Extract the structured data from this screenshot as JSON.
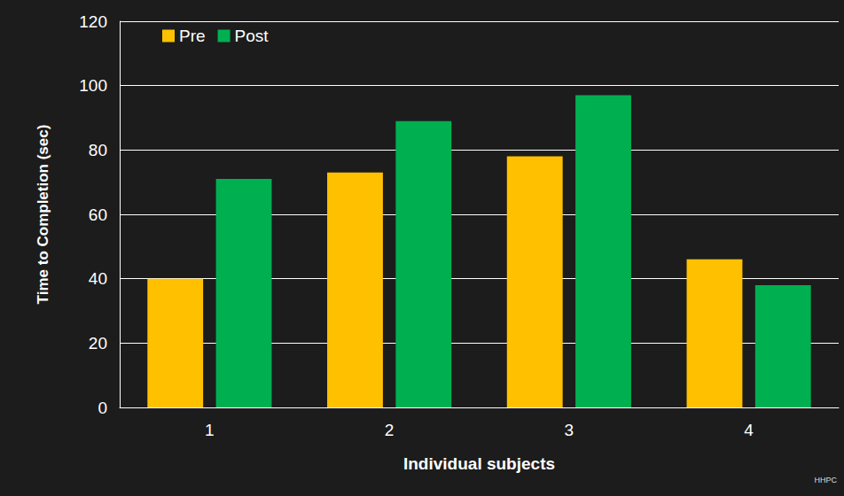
{
  "chart_data": {
    "type": "bar",
    "x_label": "Individual subjects",
    "y_label": "Time to Completion (sec)",
    "categories": [
      "1",
      "2",
      "3",
      "4"
    ],
    "series": [
      {
        "name": "Pre",
        "color": "#ffc000",
        "values": [
          40,
          73,
          78,
          46
        ]
      },
      {
        "name": "Post",
        "color": "#00b050",
        "values": [
          71,
          89,
          97,
          38
        ]
      }
    ],
    "ylim": [
      0,
      120
    ],
    "yticks": [
      0,
      20,
      40,
      60,
      80,
      100,
      120
    ],
    "grid": true,
    "legend": "top-left",
    "annotations": [
      "HHPC"
    ]
  }
}
